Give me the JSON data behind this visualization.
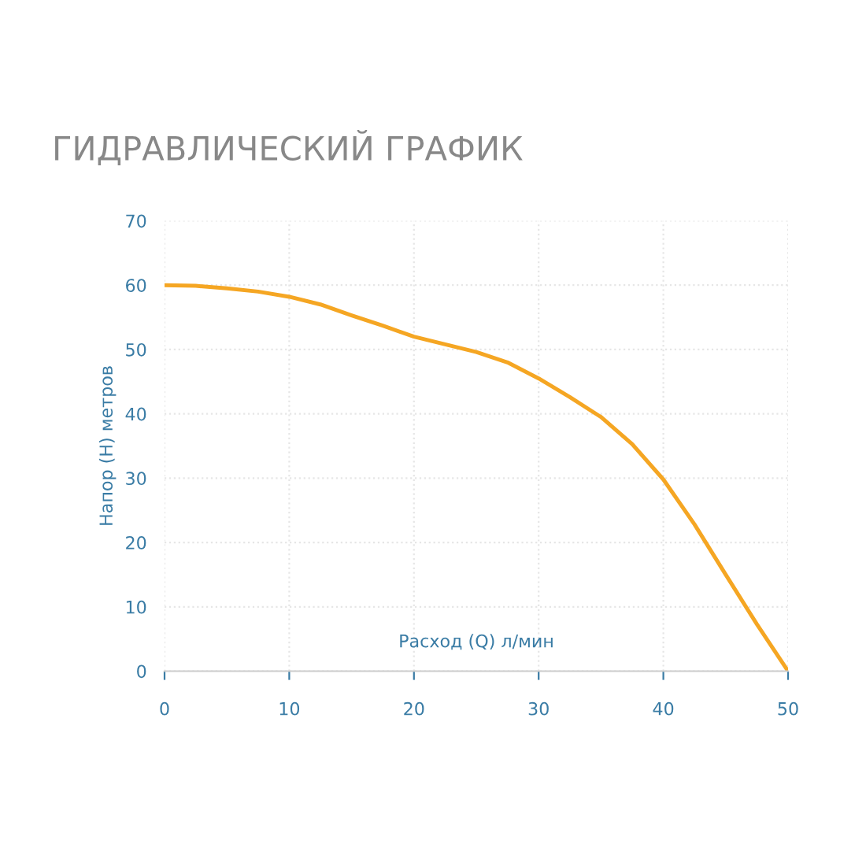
{
  "chart_data": {
    "type": "line",
    "title": "ГИДРАВЛИЧЕСКИЙ ГРАФИК",
    "xlabel": "Расход (Q) л/мин",
    "ylabel": "Напор (H) метров",
    "x": [
      0,
      2.5,
      5,
      7.5,
      10,
      12.5,
      15,
      17.5,
      20,
      22.5,
      25,
      27.5,
      30,
      32.5,
      35,
      37.5,
      40,
      42.5,
      45,
      47.5,
      50
    ],
    "series": [
      {
        "color": "#f5a623",
        "values": [
          60,
          59.9,
          59.5,
          59,
          58.2,
          57,
          55.3,
          53.7,
          52,
          50.8,
          49.6,
          48,
          45.5,
          42.6,
          39.5,
          35.3,
          29.8,
          22.8,
          15,
          7.3,
          0
        ]
      }
    ],
    "xlim": [
      0,
      50
    ],
    "ylim": [
      0,
      70
    ],
    "xticks": [
      0,
      10,
      20,
      30,
      40,
      50
    ],
    "yticks": [
      0,
      10,
      20,
      30,
      40,
      50,
      60,
      70
    ],
    "grid": true,
    "marker": "none",
    "line_style": "solid",
    "legend": false
  }
}
